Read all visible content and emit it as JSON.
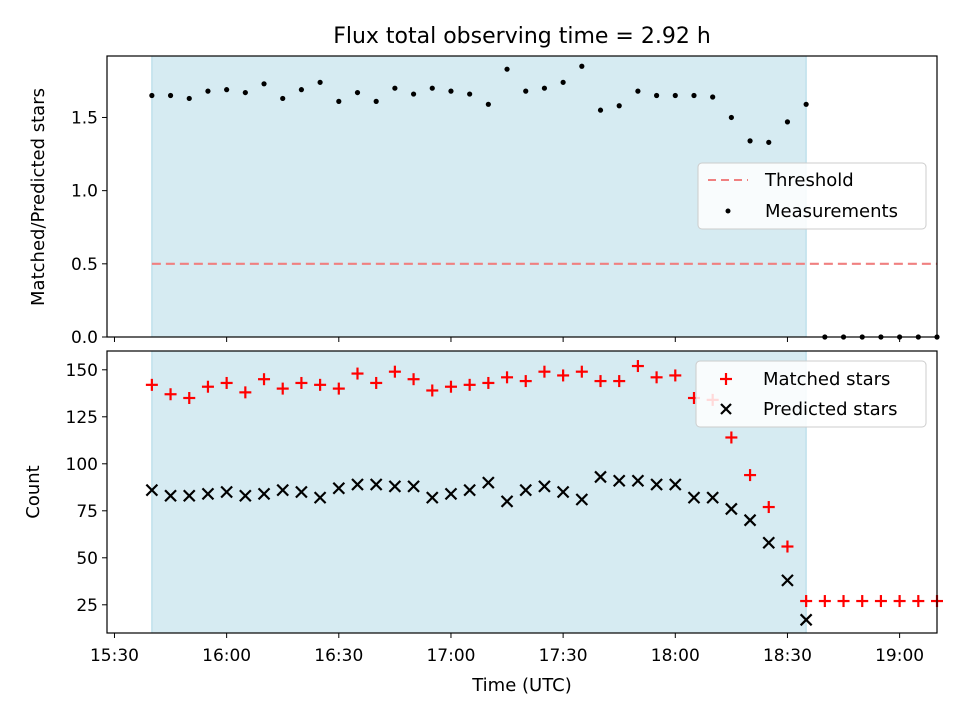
{
  "chart_data": [
    {
      "type": "scatter",
      "title": "Flux total observing time = 2.92 h",
      "xlabel": "",
      "ylabel": "Matched/Predicted stars",
      "xlim": [
        "15:28",
        "19:10"
      ],
      "ylim": [
        0,
        1.92
      ],
      "yticks": [
        0.0,
        0.5,
        1.0,
        1.5
      ],
      "ytick_labels": [
        "0.0",
        "0.5",
        "1.0",
        "1.5"
      ],
      "grid": false,
      "legend_position": "right",
      "shaded_span": {
        "start": "15:40",
        "end": "18:35",
        "color": "#add8e6"
      },
      "series": [
        {
          "name": "Threshold",
          "style": "dashed-line",
          "color": "#f08080",
          "x": [
            "15:40",
            "19:10"
          ],
          "y": [
            0.5,
            0.5
          ]
        },
        {
          "name": "Measurements",
          "style": "dot",
          "color": "#000000",
          "x": [
            "15:40",
            "15:45",
            "15:50",
            "15:55",
            "16:00",
            "16:05",
            "16:10",
            "16:15",
            "16:20",
            "16:25",
            "16:30",
            "16:35",
            "16:40",
            "16:45",
            "16:50",
            "16:55",
            "17:00",
            "17:05",
            "17:10",
            "17:15",
            "17:20",
            "17:25",
            "17:30",
            "17:35",
            "17:40",
            "17:45",
            "17:50",
            "17:55",
            "18:00",
            "18:05",
            "18:10",
            "18:15",
            "18:20",
            "18:25",
            "18:30",
            "18:35",
            "18:40",
            "18:45",
            "18:50",
            "18:55",
            "19:00",
            "19:05",
            "19:10"
          ],
          "y": [
            1.65,
            1.65,
            1.63,
            1.68,
            1.69,
            1.67,
            1.73,
            1.63,
            1.69,
            1.74,
            1.61,
            1.67,
            1.61,
            1.7,
            1.66,
            1.7,
            1.68,
            1.66,
            1.59,
            1.83,
            1.68,
            1.7,
            1.74,
            1.85,
            1.55,
            1.58,
            1.68,
            1.65,
            1.65,
            1.65,
            1.64,
            1.5,
            1.34,
            1.33,
            1.47,
            1.59,
            0.0,
            0.0,
            0.0,
            0.0,
            0.0,
            0.0,
            0.0
          ]
        }
      ]
    },
    {
      "type": "scatter",
      "title": "",
      "xlabel": "Time (UTC)",
      "ylabel": "Count",
      "xlim": [
        "15:28",
        "19:10"
      ],
      "ylim": [
        10,
        160
      ],
      "yticks": [
        25,
        50,
        75,
        100,
        125,
        150
      ],
      "ytick_labels": [
        "25",
        "50",
        "75",
        "100",
        "125",
        "150"
      ],
      "xticks": [
        "15:30",
        "16:00",
        "16:30",
        "17:00",
        "17:30",
        "18:00",
        "18:30",
        "19:00"
      ],
      "xtick_labels": [
        "15:30",
        "16:00",
        "16:30",
        "17:00",
        "17:30",
        "18:00",
        "18:30",
        "19:00"
      ],
      "grid": false,
      "legend_position": "top-right",
      "shaded_span": {
        "start": "15:40",
        "end": "18:35",
        "color": "#add8e6"
      },
      "series": [
        {
          "name": "Matched stars",
          "marker": "plus",
          "color": "#ff0000",
          "x": [
            "15:40",
            "15:45",
            "15:50",
            "15:55",
            "16:00",
            "16:05",
            "16:10",
            "16:15",
            "16:20",
            "16:25",
            "16:30",
            "16:35",
            "16:40",
            "16:45",
            "16:50",
            "16:55",
            "17:00",
            "17:05",
            "17:10",
            "17:15",
            "17:20",
            "17:25",
            "17:30",
            "17:35",
            "17:40",
            "17:45",
            "17:50",
            "17:55",
            "18:00",
            "18:05",
            "18:10",
            "18:15",
            "18:20",
            "18:25",
            "18:30",
            "18:35",
            "18:40",
            "18:45",
            "18:50",
            "18:55",
            "19:00",
            "19:05",
            "19:10"
          ],
          "y": [
            142,
            137,
            135,
            141,
            143,
            138,
            145,
            140,
            143,
            142,
            140,
            148,
            143,
            149,
            145,
            139,
            141,
            142,
            143,
            146,
            144,
            149,
            147,
            149,
            144,
            144,
            152,
            146,
            147,
            135,
            134,
            114,
            94,
            77,
            56,
            27,
            27,
            27,
            27,
            27,
            27,
            27,
            27
          ]
        },
        {
          "name": "Predicted stars",
          "marker": "x",
          "color": "#000000",
          "x": [
            "15:40",
            "15:45",
            "15:50",
            "15:55",
            "16:00",
            "16:05",
            "16:10",
            "16:15",
            "16:20",
            "16:25",
            "16:30",
            "16:35",
            "16:40",
            "16:45",
            "16:50",
            "16:55",
            "17:00",
            "17:05",
            "17:10",
            "17:15",
            "17:20",
            "17:25",
            "17:30",
            "17:35",
            "17:40",
            "17:45",
            "17:50",
            "17:55",
            "18:00",
            "18:05",
            "18:10",
            "18:15",
            "18:20",
            "18:25",
            "18:30",
            "18:35"
          ],
          "y": [
            86,
            83,
            83,
            84,
            85,
            83,
            84,
            86,
            85,
            82,
            87,
            89,
            89,
            88,
            88,
            82,
            84,
            86,
            90,
            80,
            86,
            88,
            85,
            81,
            93,
            91,
            91,
            89,
            89,
            82,
            82,
            76,
            70,
            58,
            38,
            17
          ]
        }
      ]
    }
  ]
}
